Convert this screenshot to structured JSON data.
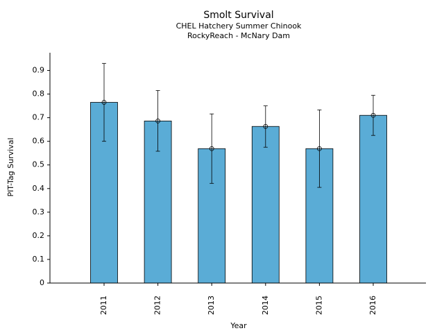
{
  "chart_data": {
    "type": "bar",
    "title": "Smolt Survival",
    "subtitle": [
      "CHEL Hatchery Summer Chinook",
      "RockyReach - McNary Dam"
    ],
    "x_label": "Year",
    "y_label": "PIT-Tag Survival",
    "categories": [
      "2011",
      "2012",
      "2013",
      "2014",
      "2015",
      "2016"
    ],
    "values": [
      0.765,
      0.686,
      0.569,
      0.663,
      0.569,
      0.71
    ],
    "ci_low": [
      0.6,
      0.558,
      0.422,
      0.575,
      0.405,
      0.625
    ],
    "ci_high": [
      0.93,
      0.815,
      0.716,
      0.75,
      0.733,
      0.795
    ],
    "color": "#5aacd6",
    "ylim": [
      0,
      0.975
    ],
    "yticks": [
      0,
      0.1,
      0.2,
      0.3,
      0.4,
      0.5,
      0.6,
      0.7,
      0.8,
      0.9
    ]
  }
}
